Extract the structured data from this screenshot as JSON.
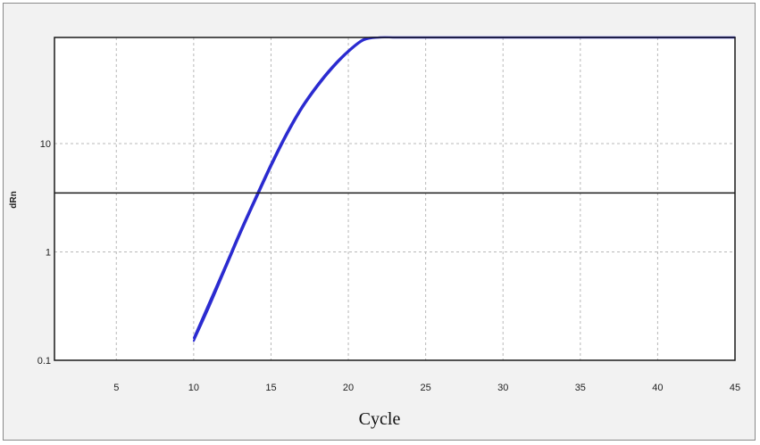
{
  "chart_data": {
    "type": "line",
    "title": "",
    "xlabel": "Cycle",
    "ylabel": "dRn",
    "xlim": [
      1,
      45
    ],
    "ylim": [
      0.1,
      200
    ],
    "yscale": "log",
    "grid": true,
    "x_ticks": [
      5,
      10,
      15,
      20,
      25,
      30,
      35,
      40,
      45
    ],
    "x_tick_labels": [
      "5",
      "10",
      "15",
      "20",
      "25",
      "30",
      "35",
      "40",
      "45"
    ],
    "y_ticks": [
      0.1,
      1,
      10
    ],
    "y_tick_labels": [
      "0.1",
      "1",
      "10"
    ],
    "threshold": 3.5,
    "colors": {
      "series": "#2b2bd0",
      "threshold": "#1a1a1a",
      "grid": "#b8b8b8",
      "plot_bg": "#ffffff"
    },
    "series": [
      {
        "x": [
          10,
          11,
          12,
          13,
          14,
          15,
          16,
          17,
          18,
          19,
          20,
          21,
          22,
          23,
          24,
          25,
          26,
          27,
          28,
          30,
          35,
          40,
          45
        ],
        "y": [
          0.16,
          0.34,
          0.72,
          1.55,
          3.2,
          6.5,
          12.5,
          22,
          35,
          52,
          72,
          92,
          110,
          125,
          134,
          140,
          144,
          147,
          148,
          150,
          150,
          150,
          150
        ]
      },
      {
        "x": [
          10,
          11,
          12,
          13,
          14,
          15,
          16,
          17,
          18,
          19,
          20,
          21,
          22,
          23,
          24,
          25,
          26,
          27,
          28,
          30,
          35,
          40,
          45
        ],
        "y": [
          0.15,
          0.31,
          0.67,
          1.45,
          3.0,
          6.1,
          11.8,
          21,
          33.5,
          50,
          70,
          90,
          108,
          123,
          133,
          139,
          143,
          146,
          148,
          150,
          150,
          150,
          150
        ]
      }
    ]
  }
}
